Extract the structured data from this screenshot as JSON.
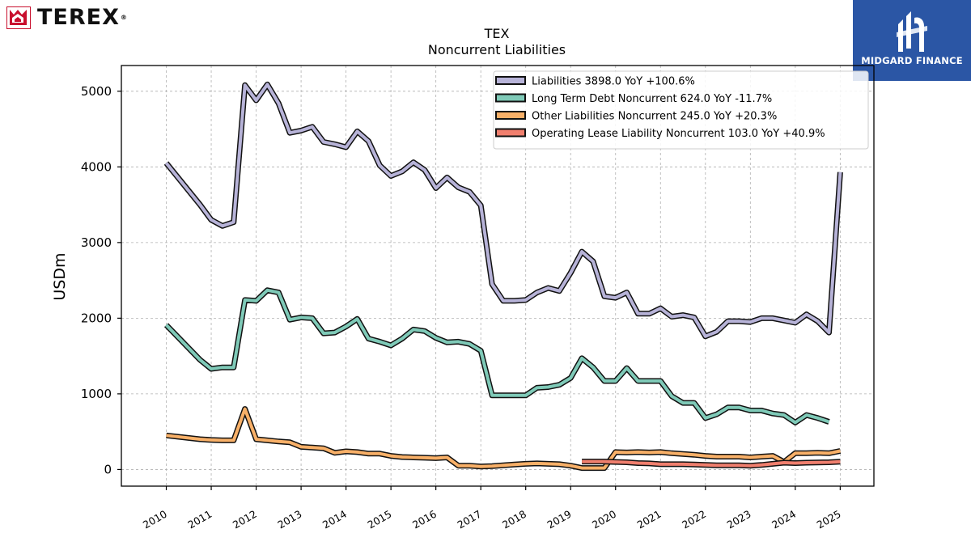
{
  "header": {
    "logo_text": "TEREX",
    "logo_reg": "®",
    "brand_text": "MIDGARD FINANCE",
    "brand_color": "#2b56a5",
    "logo_color": "#c8102e"
  },
  "chart_data": {
    "type": "line",
    "title": "TEX",
    "subtitle": "Noncurrent  Liabilities",
    "ylabel": "USDm",
    "xlabel": "",
    "ylim": [
      -220,
      5340
    ],
    "xlim": [
      2009.0,
      2025.75
    ],
    "yticks": [
      0,
      1000,
      2000,
      3000,
      4000,
      5000
    ],
    "xticks": [
      2010,
      2011,
      2012,
      2013,
      2014,
      2015,
      2016,
      2017,
      2018,
      2019,
      2020,
      2021,
      2022,
      2023,
      2024,
      2025
    ],
    "grid": true,
    "legend_position": "top-right",
    "series": [
      {
        "name": "Liabilities",
        "legend": "Liabilities  3898.0 YoY +100.6%",
        "color": "#b7b3d8",
        "points": [
          [
            2010.0,
            4050
          ],
          [
            2010.75,
            3500
          ],
          [
            2011.0,
            3300
          ],
          [
            2011.25,
            3220
          ],
          [
            2011.5,
            3270
          ],
          [
            2011.75,
            5080
          ],
          [
            2012.0,
            4880
          ],
          [
            2012.25,
            5090
          ],
          [
            2012.5,
            4840
          ],
          [
            2012.75,
            4450
          ],
          [
            2013.0,
            4480
          ],
          [
            2013.25,
            4530
          ],
          [
            2013.5,
            4330
          ],
          [
            2013.75,
            4300
          ],
          [
            2014.0,
            4260
          ],
          [
            2014.25,
            4470
          ],
          [
            2014.5,
            4340
          ],
          [
            2014.75,
            4020
          ],
          [
            2015.0,
            3880
          ],
          [
            2015.25,
            3940
          ],
          [
            2015.5,
            4060
          ],
          [
            2015.75,
            3960
          ],
          [
            2016.0,
            3720
          ],
          [
            2016.25,
            3860
          ],
          [
            2016.5,
            3730
          ],
          [
            2016.75,
            3670
          ],
          [
            2017.0,
            3490
          ],
          [
            2017.25,
            2450
          ],
          [
            2017.5,
            2230
          ],
          [
            2017.75,
            2230
          ],
          [
            2018.0,
            2240
          ],
          [
            2018.25,
            2340
          ],
          [
            2018.5,
            2400
          ],
          [
            2018.75,
            2360
          ],
          [
            2019.0,
            2600
          ],
          [
            2019.25,
            2880
          ],
          [
            2019.5,
            2750
          ],
          [
            2019.75,
            2290
          ],
          [
            2020.0,
            2270
          ],
          [
            2020.25,
            2340
          ],
          [
            2020.5,
            2060
          ],
          [
            2020.75,
            2060
          ],
          [
            2021.0,
            2130
          ],
          [
            2021.25,
            2020
          ],
          [
            2021.5,
            2040
          ],
          [
            2021.75,
            2010
          ],
          [
            2022.0,
            1760
          ],
          [
            2022.25,
            1820
          ],
          [
            2022.5,
            1960
          ],
          [
            2022.75,
            1960
          ],
          [
            2023.0,
            1950
          ],
          [
            2023.25,
            2000
          ],
          [
            2023.5,
            2000
          ],
          [
            2023.75,
            1970
          ],
          [
            2024.0,
            1940
          ],
          [
            2024.25,
            2050
          ],
          [
            2024.5,
            1960
          ],
          [
            2024.75,
            1810
          ],
          [
            2025.0,
            3930
          ]
        ]
      },
      {
        "name": "Long Term Debt Noncurrent",
        "legend": "Long Term Debt Noncurrent  624.0 YoY -11.7%",
        "color": "#7fcab8",
        "points": [
          [
            2010.0,
            1910
          ],
          [
            2010.75,
            1450
          ],
          [
            2011.0,
            1330
          ],
          [
            2011.25,
            1350
          ],
          [
            2011.5,
            1350
          ],
          [
            2011.75,
            2240
          ],
          [
            2012.0,
            2230
          ],
          [
            2012.25,
            2370
          ],
          [
            2012.5,
            2340
          ],
          [
            2012.75,
            1980
          ],
          [
            2013.0,
            2010
          ],
          [
            2013.25,
            2000
          ],
          [
            2013.5,
            1800
          ],
          [
            2013.75,
            1810
          ],
          [
            2014.0,
            1890
          ],
          [
            2014.25,
            1990
          ],
          [
            2014.5,
            1730
          ],
          [
            2014.75,
            1690
          ],
          [
            2015.0,
            1640
          ],
          [
            2015.25,
            1730
          ],
          [
            2015.5,
            1850
          ],
          [
            2015.75,
            1830
          ],
          [
            2016.0,
            1740
          ],
          [
            2016.25,
            1680
          ],
          [
            2016.5,
            1690
          ],
          [
            2016.75,
            1660
          ],
          [
            2017.0,
            1570
          ],
          [
            2017.25,
            980
          ],
          [
            2017.5,
            980
          ],
          [
            2017.75,
            980
          ],
          [
            2018.0,
            980
          ],
          [
            2018.25,
            1080
          ],
          [
            2018.5,
            1090
          ],
          [
            2018.75,
            1120
          ],
          [
            2019.0,
            1210
          ],
          [
            2019.25,
            1470
          ],
          [
            2019.5,
            1350
          ],
          [
            2019.75,
            1170
          ],
          [
            2020.0,
            1170
          ],
          [
            2020.25,
            1340
          ],
          [
            2020.5,
            1170
          ],
          [
            2020.75,
            1170
          ],
          [
            2021.0,
            1170
          ],
          [
            2021.25,
            970
          ],
          [
            2021.5,
            880
          ],
          [
            2021.75,
            880
          ],
          [
            2022.0,
            680
          ],
          [
            2022.25,
            730
          ],
          [
            2022.5,
            820
          ],
          [
            2022.75,
            820
          ],
          [
            2023.0,
            780
          ],
          [
            2023.25,
            780
          ],
          [
            2023.5,
            740
          ],
          [
            2023.75,
            720
          ],
          [
            2024.0,
            620
          ],
          [
            2024.25,
            720
          ],
          [
            2024.5,
            680
          ],
          [
            2024.75,
            630
          ]
        ]
      },
      {
        "name": "Other Liabilities Noncurrent",
        "legend": "Other Liabilities Noncurrent  245.0 YoY +20.3%",
        "color": "#f8b068",
        "points": [
          [
            2010.0,
            450
          ],
          [
            2010.75,
            400
          ],
          [
            2011.0,
            390
          ],
          [
            2011.25,
            385
          ],
          [
            2011.5,
            385
          ],
          [
            2011.75,
            800
          ],
          [
            2012.0,
            400
          ],
          [
            2012.25,
            385
          ],
          [
            2012.5,
            370
          ],
          [
            2012.75,
            360
          ],
          [
            2013.0,
            300
          ],
          [
            2013.25,
            290
          ],
          [
            2013.5,
            280
          ],
          [
            2013.75,
            220
          ],
          [
            2014.0,
            240
          ],
          [
            2014.25,
            230
          ],
          [
            2014.5,
            210
          ],
          [
            2014.75,
            210
          ],
          [
            2015.0,
            180
          ],
          [
            2015.25,
            165
          ],
          [
            2015.5,
            160
          ],
          [
            2015.75,
            155
          ],
          [
            2016.0,
            150
          ],
          [
            2016.25,
            160
          ],
          [
            2016.5,
            50
          ],
          [
            2016.75,
            50
          ],
          [
            2017.0,
            40
          ],
          [
            2017.25,
            45
          ],
          [
            2017.5,
            55
          ],
          [
            2017.75,
            65
          ],
          [
            2018.0,
            75
          ],
          [
            2018.25,
            80
          ],
          [
            2018.5,
            75
          ],
          [
            2018.75,
            70
          ],
          [
            2019.0,
            50
          ],
          [
            2019.25,
            20
          ],
          [
            2019.5,
            20
          ],
          [
            2019.75,
            20
          ],
          [
            2020.0,
            230
          ],
          [
            2020.25,
            225
          ],
          [
            2020.5,
            230
          ],
          [
            2020.75,
            225
          ],
          [
            2021.0,
            230
          ],
          [
            2021.25,
            215
          ],
          [
            2021.5,
            205
          ],
          [
            2021.75,
            195
          ],
          [
            2022.0,
            180
          ],
          [
            2022.25,
            170
          ],
          [
            2022.5,
            170
          ],
          [
            2022.75,
            170
          ],
          [
            2023.0,
            160
          ],
          [
            2023.25,
            170
          ],
          [
            2023.5,
            180
          ],
          [
            2023.75,
            100
          ],
          [
            2024.0,
            215
          ],
          [
            2024.25,
            215
          ],
          [
            2024.5,
            220
          ],
          [
            2024.75,
            215
          ],
          [
            2025.0,
            245
          ]
        ]
      },
      {
        "name": "Operating Lease Liability Noncurrent",
        "legend": "Operating Lease Liability Noncurrent  103.0 YoY +40.9%",
        "color": "#f07f6e",
        "points": [
          [
            2019.25,
            105
          ],
          [
            2019.75,
            105
          ],
          [
            2020.0,
            100
          ],
          [
            2020.25,
            95
          ],
          [
            2020.5,
            85
          ],
          [
            2020.75,
            80
          ],
          [
            2021.0,
            70
          ],
          [
            2021.25,
            70
          ],
          [
            2021.5,
            70
          ],
          [
            2021.75,
            65
          ],
          [
            2022.0,
            60
          ],
          [
            2022.25,
            55
          ],
          [
            2022.5,
            55
          ],
          [
            2022.75,
            55
          ],
          [
            2023.0,
            50
          ],
          [
            2023.25,
            60
          ],
          [
            2023.5,
            75
          ],
          [
            2023.75,
            90
          ],
          [
            2024.0,
            85
          ],
          [
            2024.25,
            90
          ],
          [
            2024.5,
            92
          ],
          [
            2024.75,
            95
          ],
          [
            2025.0,
            103
          ]
        ]
      }
    ]
  }
}
